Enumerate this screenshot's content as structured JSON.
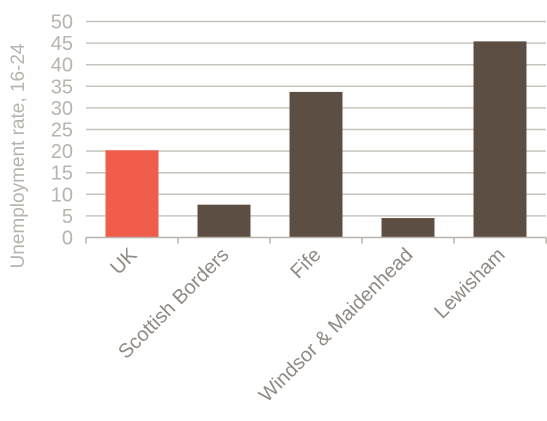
{
  "chart_data": {
    "type": "bar",
    "categories": [
      "UK",
      "Scottish Borders",
      "Fife",
      "Windsor & Maidenhead",
      "Lewisham"
    ],
    "values": [
      20.2,
      7.6,
      33.7,
      4.5,
      45.4
    ],
    "ylabel": "Unemployment rate, 16-24",
    "xlabel": "",
    "ylim": [
      0,
      50
    ],
    "yticks": [
      0,
      5,
      10,
      15,
      20,
      25,
      30,
      35,
      40,
      45,
      50
    ],
    "grid": true,
    "legend": "none",
    "colors": {
      "highlight": "#f05d4b",
      "bar": "#5c4e43",
      "grid": "#c9c4be",
      "axis": "#b8b3ad"
    },
    "highlight_index": 0
  }
}
